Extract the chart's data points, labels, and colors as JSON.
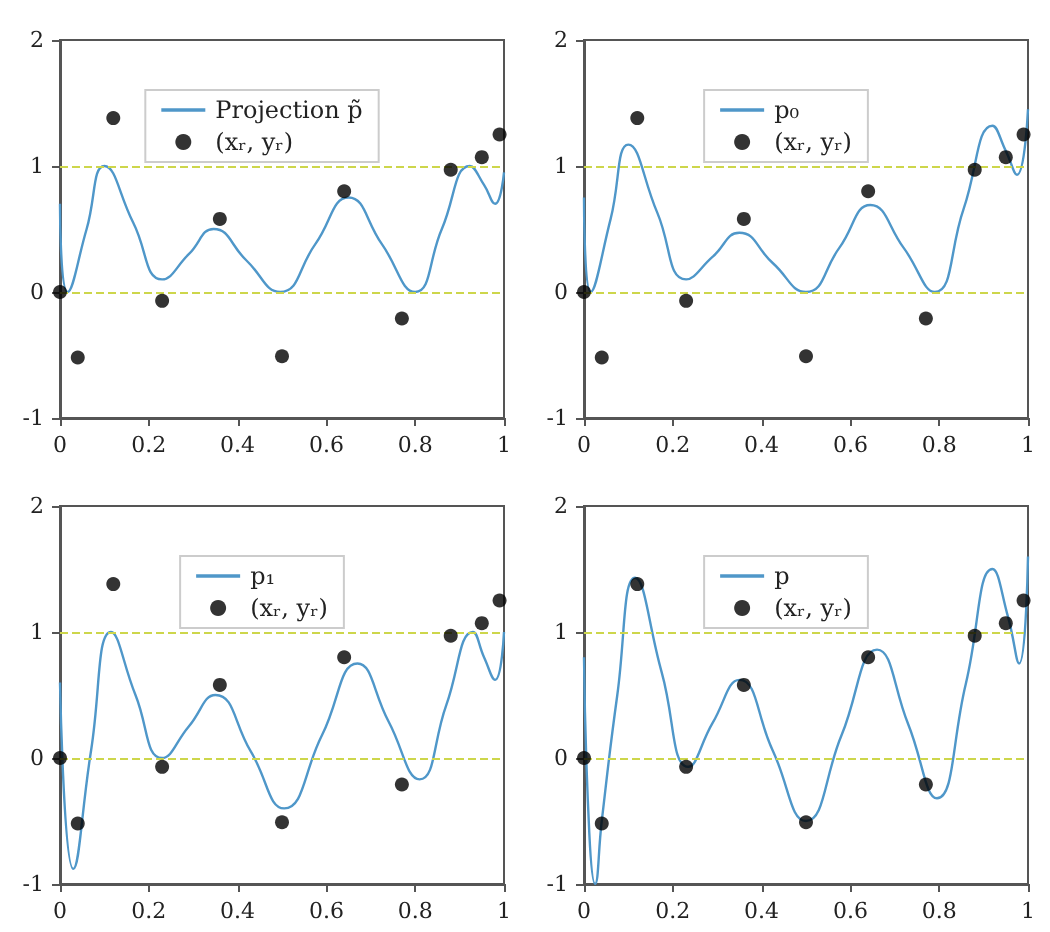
{
  "chart_data": [
    {
      "type": "line",
      "xlim": [
        0,
        1
      ],
      "xticks": [
        0,
        0.2,
        0.4,
        0.6,
        0.8,
        1
      ],
      "ylim": [
        -1,
        2
      ],
      "yticks": [
        -1,
        0,
        1,
        2
      ],
      "legend": "top",
      "ref_lines": [
        {
          "axis": "y",
          "value": 0,
          "color": "#cdd64b",
          "line_style": "dashed"
        },
        {
          "axis": "y",
          "value": 1,
          "color": "#cdd64b",
          "line_style": "dashed"
        }
      ],
      "series": [
        {
          "name": "Projection p̃",
          "marker": "none",
          "color": "#4f97c9",
          "x": [
            0,
            0.017,
            0.06,
            0.1,
            0.165,
            0.23,
            0.29,
            0.346,
            0.42,
            0.496,
            0.575,
            0.65,
            0.725,
            0.8,
            0.86,
            0.923,
            0.955,
            0.98,
            1
          ],
          "values": [
            0.7,
            0,
            0.5,
            1.0,
            0.55,
            0.1,
            0.3,
            0.5,
            0.25,
            0,
            0.38,
            0.75,
            0.38,
            0,
            0.5,
            1.0,
            0.85,
            0.7,
            0.95
          ]
        },
        {
          "name": "(xᵣ, yᵣ)",
          "type": "scatter",
          "marker": "circle",
          "color": "#000000",
          "x": [
            0,
            0.04,
            0.12,
            0.23,
            0.36,
            0.5,
            0.64,
            0.77,
            0.88,
            0.95,
            0.99
          ],
          "values": [
            0,
            -0.52,
            1.38,
            -0.07,
            0.58,
            -0.51,
            0.8,
            -0.21,
            0.97,
            1.07,
            1.25
          ]
        }
      ]
    },
    {
      "type": "line",
      "xlim": [
        0,
        1
      ],
      "xticks": [
        0,
        0.2,
        0.4,
        0.6,
        0.8,
        1
      ],
      "ylim": [
        -1,
        2
      ],
      "yticks": [
        -1,
        0,
        1,
        2
      ],
      "legend": "top",
      "ref_lines": [
        {
          "axis": "y",
          "value": 0,
          "color": "#cdd64b",
          "line_style": "dashed"
        },
        {
          "axis": "y",
          "value": 1,
          "color": "#cdd64b",
          "line_style": "dashed"
        }
      ],
      "series": [
        {
          "name": "p₀",
          "marker": "none",
          "color": "#4f97c9",
          "x": [
            0,
            0.015,
            0.06,
            0.1,
            0.165,
            0.23,
            0.29,
            0.35,
            0.425,
            0.5,
            0.575,
            0.645,
            0.72,
            0.79,
            0.855,
            0.92,
            0.95,
            0.975,
            1
          ],
          "values": [
            0.75,
            0,
            0.58,
            1.17,
            0.63,
            0.1,
            0.28,
            0.47,
            0.23,
            0,
            0.35,
            0.69,
            0.35,
            0,
            0.66,
            1.32,
            1.12,
            0.93,
            1.45
          ]
        },
        {
          "name": "(xᵣ, yᵣ)",
          "type": "scatter",
          "marker": "circle",
          "color": "#000000",
          "x": [
            0,
            0.04,
            0.12,
            0.23,
            0.36,
            0.5,
            0.64,
            0.77,
            0.88,
            0.95,
            0.99
          ],
          "values": [
            0,
            -0.52,
            1.38,
            -0.07,
            0.58,
            -0.51,
            0.8,
            -0.21,
            0.97,
            1.07,
            1.25
          ]
        }
      ]
    },
    {
      "type": "line",
      "xlim": [
        0,
        1
      ],
      "xticks": [
        0,
        0.2,
        0.4,
        0.6,
        0.8,
        1
      ],
      "ylim": [
        -1,
        2
      ],
      "yticks": [
        -1,
        0,
        1,
        2
      ],
      "legend": "top",
      "ref_lines": [
        {
          "axis": "y",
          "value": 0,
          "color": "#cdd64b",
          "line_style": "dashed"
        },
        {
          "axis": "y",
          "value": 1,
          "color": "#cdd64b",
          "line_style": "dashed"
        }
      ],
      "series": [
        {
          "name": "p₁",
          "marker": "none",
          "color": "#4f97c9",
          "x": [
            0,
            0.03,
            0.07,
            0.115,
            0.17,
            0.23,
            0.29,
            0.35,
            0.43,
            0.505,
            0.59,
            0.67,
            0.74,
            0.81,
            0.87,
            0.93,
            0.955,
            0.98,
            1
          ],
          "values": [
            0.6,
            -0.88,
            0.06,
            1.0,
            0.5,
            0,
            0.25,
            0.5,
            0.05,
            -0.4,
            0.18,
            0.75,
            0.29,
            -0.17,
            0.42,
            1.0,
            0.8,
            0.62,
            1.0
          ]
        },
        {
          "name": "(xᵣ, yᵣ)",
          "type": "scatter",
          "marker": "circle",
          "color": "#000000",
          "x": [
            0,
            0.04,
            0.12,
            0.23,
            0.36,
            0.5,
            0.64,
            0.77,
            0.88,
            0.95,
            0.99
          ],
          "values": [
            0,
            -0.52,
            1.38,
            -0.07,
            0.58,
            -0.51,
            0.8,
            -0.21,
            0.97,
            1.07,
            1.25
          ]
        }
      ]
    },
    {
      "type": "line",
      "xlim": [
        0,
        1
      ],
      "xticks": [
        0,
        0.2,
        0.4,
        0.6,
        0.8,
        1
      ],
      "ylim": [
        -1,
        2
      ],
      "yticks": [
        -1,
        0,
        1,
        2
      ],
      "legend": "top",
      "ref_lines": [
        {
          "axis": "y",
          "value": 0,
          "color": "#cdd64b",
          "line_style": "dashed"
        },
        {
          "axis": "y",
          "value": 1,
          "color": "#cdd64b",
          "line_style": "dashed"
        }
      ],
      "series": [
        {
          "name": "p",
          "marker": "none",
          "color": "#4f97c9",
          "x": [
            0,
            0.012,
            0.025,
            0.04,
            0.075,
            0.115,
            0.175,
            0.235,
            0.29,
            0.35,
            0.425,
            0.5,
            0.58,
            0.66,
            0.73,
            0.795,
            0.86,
            0.92,
            0.955,
            0.98,
            1
          ],
          "values": [
            0.8,
            -0.6,
            -1,
            -0.5,
            0.5,
            1.43,
            0.68,
            -0.07,
            0.28,
            0.62,
            0.06,
            -0.5,
            0.18,
            0.86,
            0.27,
            -0.32,
            0.59,
            1.5,
            1.12,
            0.75,
            1.6
          ]
        },
        {
          "name": "(xᵣ, yᵣ)",
          "type": "scatter",
          "marker": "circle",
          "color": "#000000",
          "x": [
            0,
            0.04,
            0.12,
            0.23,
            0.36,
            0.5,
            0.64,
            0.77,
            0.88,
            0.95,
            0.99
          ],
          "values": [
            0,
            -0.52,
            1.38,
            -0.07,
            0.58,
            -0.51,
            0.8,
            -0.21,
            0.97,
            1.07,
            1.25
          ]
        }
      ]
    }
  ]
}
